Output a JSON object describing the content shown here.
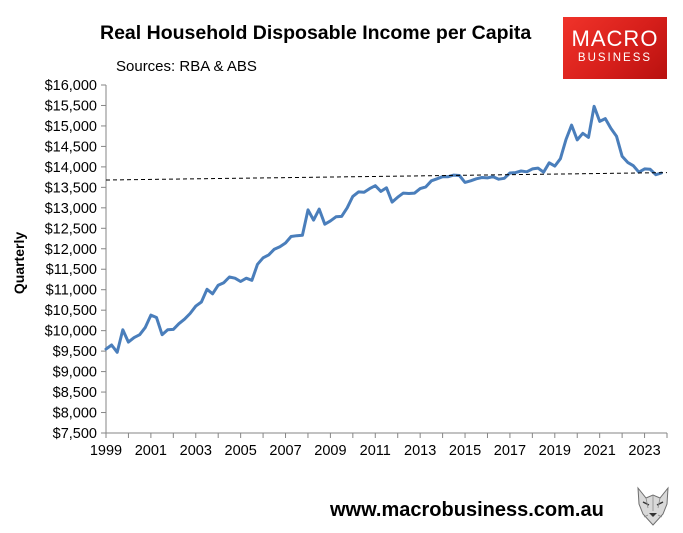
{
  "header": {
    "title": "Real Household Disposable Income per Capita",
    "subtitle": "Sources: RBA & ABS"
  },
  "logo": {
    "line1": "MACRO",
    "line2": "BUSINESS"
  },
  "footer": {
    "website": "www.macrobusiness.com.au",
    "mascot_icon": "wolf-head-icon"
  },
  "colors": {
    "series": "#4a7ebb",
    "trend": "#000000",
    "logo_bg": "#e02a23",
    "axis": "#868686"
  },
  "chart_data": {
    "type": "line",
    "title": "Real Household Disposable Income per Capita",
    "subtitle": "Sources: RBA & ABS",
    "xlabel": "",
    "ylabel": "Quarterly",
    "xlim": [
      1999.0,
      2024.0
    ],
    "ylim": [
      7500,
      16000
    ],
    "x_ticks": [
      1999,
      2001,
      2003,
      2005,
      2007,
      2009,
      2011,
      2013,
      2015,
      2017,
      2019,
      2021,
      2023
    ],
    "x_tick_labels": [
      "1999",
      "2001",
      "2003",
      "2005",
      "2007",
      "2009",
      "2011",
      "2013",
      "2015",
      "2017",
      "2019",
      "2021",
      "2023"
    ],
    "y_ticks": [
      7500,
      8000,
      8500,
      9000,
      9500,
      10000,
      10500,
      11000,
      11500,
      12000,
      12500,
      13000,
      13500,
      14000,
      14500,
      15000,
      15500,
      16000
    ],
    "y_tick_labels": [
      "$7,500",
      "$8,000",
      "$8,500",
      "$9,000",
      "$9,500",
      "$10,000",
      "$10,500",
      "$11,000",
      "$11,500",
      "$12,000",
      "$12,500",
      "$13,000",
      "$13,500",
      "$14,000",
      "$14,500",
      "$15,000",
      "$15,500",
      "$16,000"
    ],
    "grid": false,
    "legend": "none",
    "series": [
      {
        "style": "solid",
        "x": [
          1999.0,
          1999.25,
          1999.5,
          1999.75,
          2000.0,
          2000.25,
          2000.5,
          2000.75,
          2001.0,
          2001.25,
          2001.5,
          2001.75,
          2002.0,
          2002.25,
          2002.5,
          2002.75,
          2003.0,
          2003.25,
          2003.5,
          2003.75,
          2004.0,
          2004.25,
          2004.5,
          2004.75,
          2005.0,
          2005.25,
          2005.5,
          2005.75,
          2006.0,
          2006.25,
          2006.5,
          2006.75,
          2007.0,
          2007.25,
          2007.5,
          2007.75,
          2008.0,
          2008.25,
          2008.5,
          2008.75,
          2009.0,
          2009.25,
          2009.5,
          2009.75,
          2010.0,
          2010.25,
          2010.5,
          2010.75,
          2011.0,
          2011.25,
          2011.5,
          2011.75,
          2012.0,
          2012.25,
          2012.5,
          2012.75,
          2013.0,
          2013.25,
          2013.5,
          2013.75,
          2014.0,
          2014.25,
          2014.5,
          2014.75,
          2015.0,
          2015.25,
          2015.5,
          2015.75,
          2016.0,
          2016.25,
          2016.5,
          2016.75,
          2017.0,
          2017.25,
          2017.5,
          2017.75,
          2018.0,
          2018.25,
          2018.5,
          2018.75,
          2019.0,
          2019.25,
          2019.5,
          2019.75,
          2020.0,
          2020.25,
          2020.5,
          2020.75,
          2021.0,
          2021.25,
          2021.5,
          2021.75,
          2022.0,
          2022.25,
          2022.5,
          2022.75,
          2023.0,
          2023.25,
          2023.5,
          2023.75
        ],
        "values": [
          9550,
          9650,
          9470,
          10020,
          9720,
          9830,
          9900,
          10080,
          10380,
          10320,
          9900,
          10020,
          10030,
          10170,
          10280,
          10420,
          10600,
          10700,
          11010,
          10900,
          11110,
          11170,
          11310,
          11280,
          11200,
          11280,
          11230,
          11620,
          11780,
          11850,
          11990,
          12050,
          12140,
          12300,
          12320,
          12330,
          12950,
          12700,
          12970,
          12600,
          12680,
          12780,
          12790,
          13000,
          13280,
          13390,
          13380,
          13470,
          13540,
          13400,
          13490,
          13140,
          13260,
          13360,
          13350,
          13360,
          13470,
          13510,
          13660,
          13710,
          13760,
          13760,
          13800,
          13790,
          13620,
          13660,
          13710,
          13740,
          13730,
          13760,
          13700,
          13720,
          13850,
          13860,
          13900,
          13880,
          13950,
          13970,
          13870,
          14100,
          14020,
          14200,
          14670,
          15020,
          14660,
          14820,
          14720,
          15480,
          15110,
          15180,
          14940,
          14750,
          14260,
          14110,
          14030,
          13870,
          13950,
          13940,
          13810,
          13850
        ]
      },
      {
        "style": "dashed",
        "x": [
          1999.0,
          2024.0
        ],
        "values": [
          13680,
          13860
        ]
      }
    ]
  }
}
